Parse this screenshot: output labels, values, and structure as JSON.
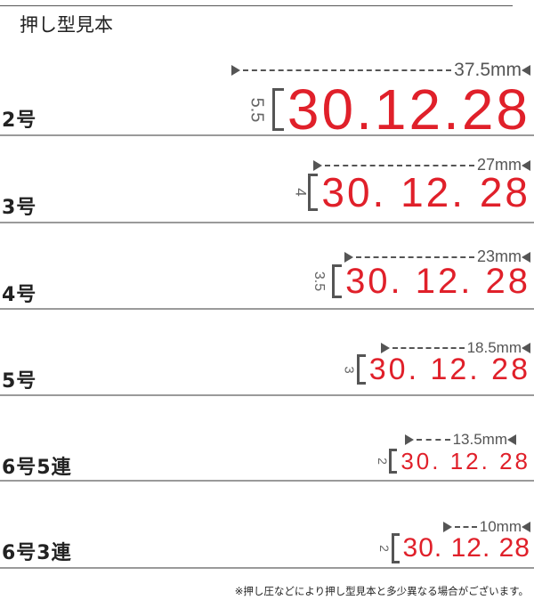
{
  "title": "押し型見本",
  "rows": [
    {
      "label": "2号",
      "width": "37.5mm",
      "height": "5.5",
      "date": "30.12.28"
    },
    {
      "label": "3号",
      "width": "27mm",
      "height": "4",
      "date": "30. 12. 28"
    },
    {
      "label": "4号",
      "width": "23mm",
      "height": "3.5",
      "date": "30. 12. 28"
    },
    {
      "label": "5号",
      "width": "18.5mm",
      "height": "3",
      "date": "30. 12. 28"
    },
    {
      "label": "6号5連",
      "width": "13.5mm",
      "height": "2",
      "date": "30. 12. 28"
    },
    {
      "label": "6号3連",
      "width": "10mm",
      "height": "2",
      "date": "30. 12. 28"
    }
  ],
  "footnote": "※押し圧などにより押し型見本と多少異なる場合がございます。",
  "colors": {
    "date": "#e0202a",
    "dimension": "#555555"
  }
}
